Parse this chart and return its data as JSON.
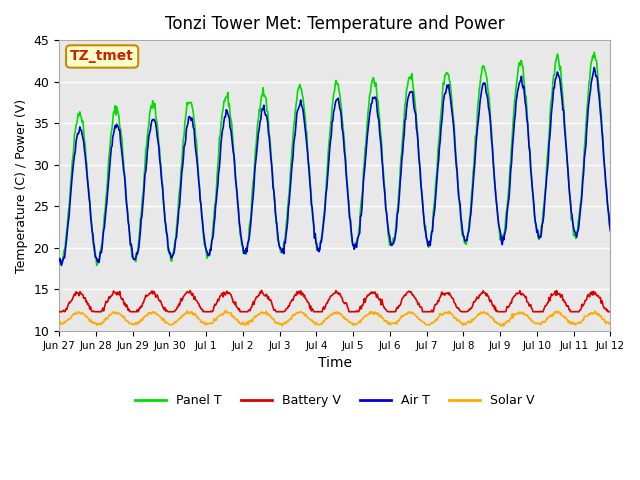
{
  "title": "Tonzi Tower Met: Temperature and Power",
  "xlabel": "Time",
  "ylabel": "Temperature (C) / Power (V)",
  "ylim": [
    10,
    45
  ],
  "yticks": [
    10,
    15,
    20,
    25,
    30,
    35,
    40,
    45
  ],
  "annotation": "TZ_tmet",
  "bg_inner": "#e8e8e8",
  "bg_outer": "#ffffff",
  "grid_color": "#ffffff",
  "colors": {
    "panel": "#00dd00",
    "battery": "#dd0000",
    "air": "#0000dd",
    "solar": "#ffaa00"
  },
  "legend": [
    "Panel T",
    "Battery V",
    "Air T",
    "Solar V"
  ],
  "xtick_labels": [
    "Jun 27",
    "Jun 28",
    "Jun 29",
    "Jun 30",
    "Jul 1",
    "Jul 2",
    "Jul 3",
    "Jul 4",
    "Jul 5",
    "Jul 6",
    "Jul 7",
    "Jul 8",
    "Jul 9",
    "Jul 10",
    "Jul 11",
    "Jul 12"
  ],
  "num_days": 16,
  "pts_per_day": 48
}
